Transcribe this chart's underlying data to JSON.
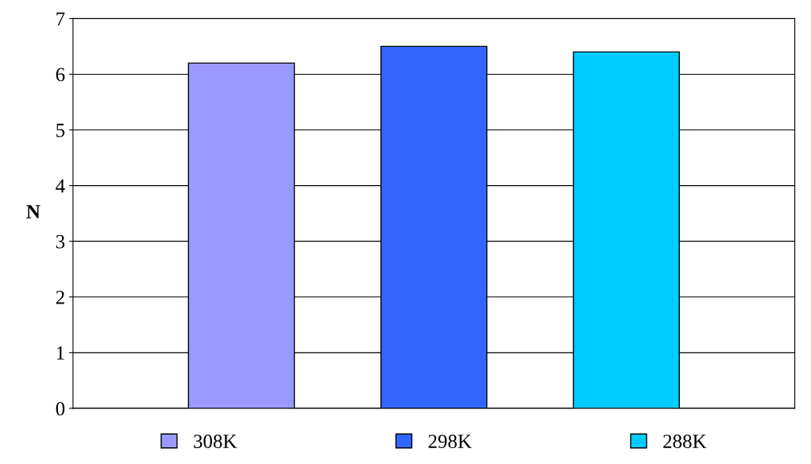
{
  "chart_data": {
    "type": "bar",
    "ylabel": "N",
    "categories": [
      null
    ],
    "series": [
      {
        "name": "308K",
        "color": "#9999ff",
        "values": [
          6.2
        ]
      },
      {
        "name": "298K",
        "color": "#3366ff",
        "values": [
          6.5
        ]
      },
      {
        "name": "288K",
        "color": "#00ccff",
        "values": [
          6.4
        ]
      }
    ],
    "ylim": [
      0,
      7
    ],
    "yticks": [
      0,
      1,
      2,
      3,
      4,
      5,
      6,
      7
    ],
    "grid": "y",
    "legend": "bottom"
  }
}
